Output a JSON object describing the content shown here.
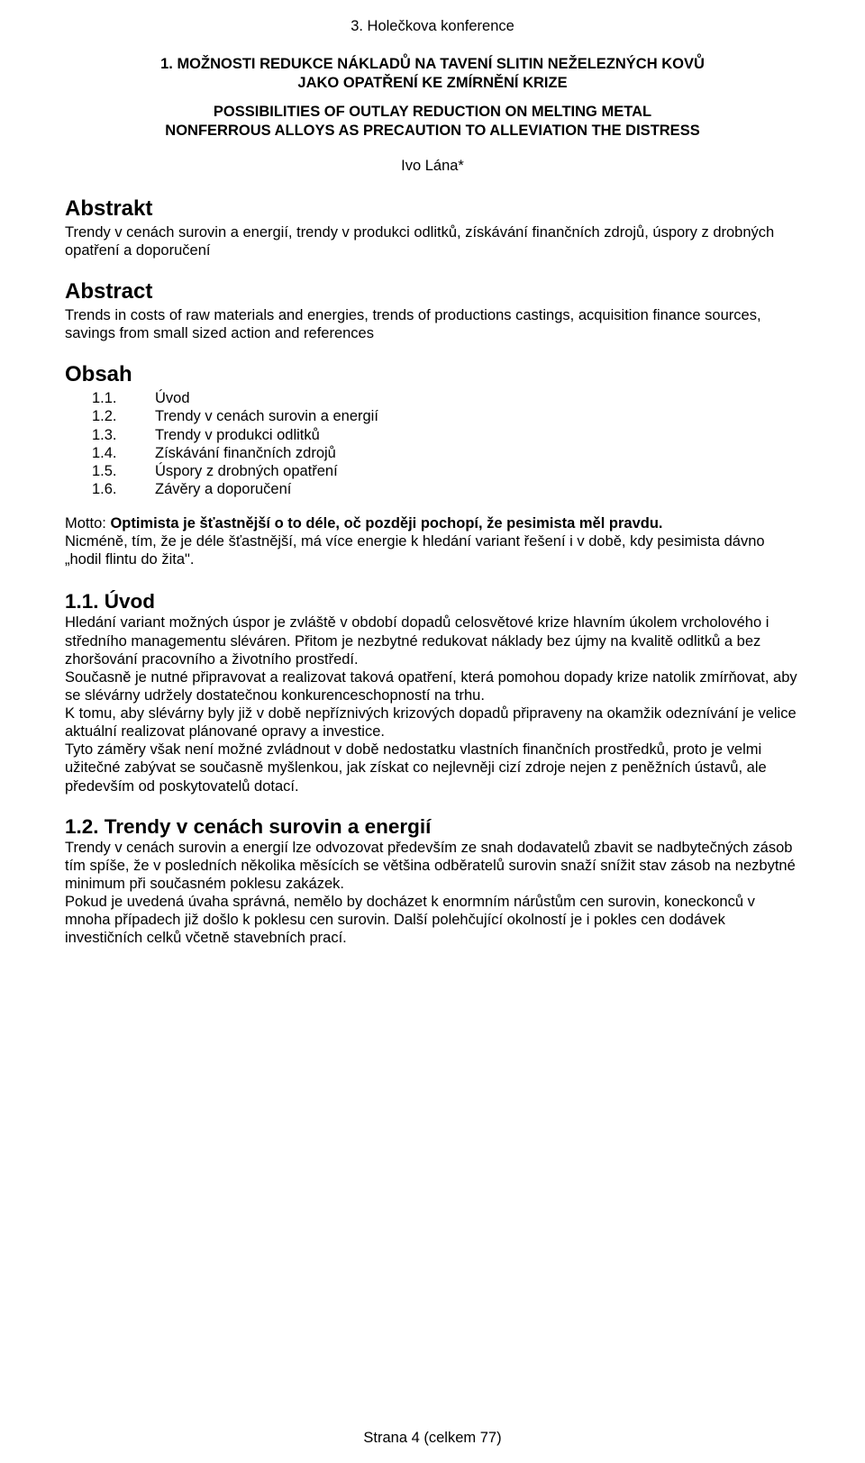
{
  "header": "3. Holečkova konference",
  "title_cz_line1": "1. MOŽNOSTI REDUKCE NÁKLADŮ NA TAVENÍ SLITIN NEŽELEZNÝCH KOVŮ",
  "title_cz_line2": "JAKO OPATŘENÍ KE ZMÍRNĚNÍ KRIZE",
  "title_en_line1": "POSSIBILITIES OF OUTLAY REDUCTION ON MELTING METAL",
  "title_en_line2": "NONFERROUS ALLOYS AS PRECAUTION TO ALLEVIATION THE DISTRESS",
  "author": "Ivo Lána*",
  "abstrakt_heading": "Abstrakt",
  "abstrakt_text": "Trendy v cenách surovin a energií, trendy v produkci odlitků, získávání finančních zdrojů, úspory z drobných opatření a doporučení",
  "abstract_heading": "Abstract",
  "abstract_text": "Trends in costs of raw materials and energies, trends of productions castings, acquisition finance sources, savings from small sized action and references",
  "obsah_heading": "Obsah",
  "toc": [
    {
      "num": "1.1.",
      "label": "Úvod"
    },
    {
      "num": "1.2.",
      "label": "Trendy v cenách surovin a energií"
    },
    {
      "num": "1.3.",
      "label": "Trendy v produkci odlitků"
    },
    {
      "num": "1.4.",
      "label": "Získávání finančních zdrojů"
    },
    {
      "num": "1.5.",
      "label": "Úspory z drobných opatření"
    },
    {
      "num": "1.6.",
      "label": "Závěry a doporučení"
    }
  ],
  "motto_label": "Motto: ",
  "motto_bold": "Optimista je šťastnější o to déle, oč později pochopí, že pesimista měl pravdu.",
  "motto_tail": "Nicméně, tím, že je déle šťastnější, má více energie k hledání variant řešení i v době, kdy pesimista dávno „hodil flintu do žita\".",
  "sec11_heading": "1.1. Úvod",
  "sec11_text": "Hledání variant možných úspor je zvláště v období dopadů celosvětové krize hlavním úkolem vrcholového i středního managementu sléváren. Přitom je nezbytné redukovat náklady bez újmy na kvalitě odlitků a bez zhoršování pracovního a životního prostředí.\nSoučasně je nutné připravovat a realizovat taková opatření, která pomohou dopady krize natolik zmírňovat, aby se slévárny udržely dostatečnou konkurenceschopností na trhu.\nK tomu, aby slévárny byly již v době nepříznivých krizových dopadů připraveny na okamžik odeznívání je velice aktuální realizovat plánované opravy a investice.\nTyto záměry však není možné zvládnout v době nedostatku vlastních finančních prostředků, proto je velmi užitečné zabývat se současně myšlenkou, jak získat co nejlevněji cizí zdroje nejen z peněžních ústavů, ale především od poskytovatelů dotací.",
  "sec12_heading": "1.2. Trendy v cenách surovin a energií",
  "sec12_text": "Trendy v cenách surovin a energií lze odvozovat především ze snah dodavatelů zbavit se nadbytečných zásob tím spíše, že v posledních několika měsících se většina odběratelů surovin snaží snížit stav zásob na nezbytné minimum při současném poklesu zakázek.\nPokud je uvedená úvaha správná, nemělo by docházet k enormním nárůstům cen surovin, koneckonců v mnoha případech již došlo k poklesu cen surovin. Další polehčující okolností je i pokles cen dodávek investičních celků včetně stavebních prací.",
  "footer": "Strana 4 (celkem 77)"
}
